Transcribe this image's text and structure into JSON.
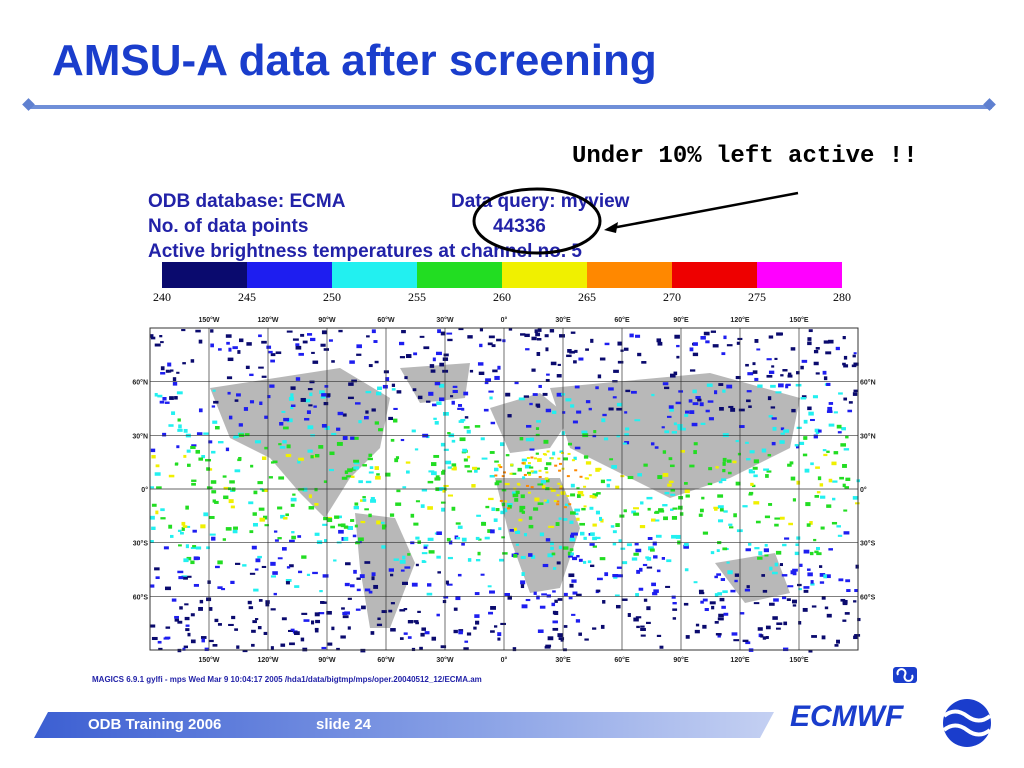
{
  "slide": {
    "title": "AMSU-A data after screening",
    "note": "Under 10% left active !!"
  },
  "figure": {
    "line1_left": "ODB database: ECMA",
    "line1_right": "Data query: myview",
    "line2_left": "No. of data points",
    "line2_right": "44336",
    "line3": "Active brightness temperatures at channel no. 5",
    "caption": "MAGICS 6.9.1 gylfi - mps Wed Mar  9 10:04:17 2005    /hda1/data/bigtmp/mps/oper.20040512_12/ECMA.am"
  },
  "color_scale": {
    "ticks": [
      "240",
      "245",
      "250",
      "255",
      "260",
      "265",
      "270",
      "275",
      "280"
    ],
    "colors": [
      "#0a0a6e",
      "#1e1ef0",
      "#22f0f0",
      "#22dd22",
      "#f0f000",
      "#ff8800",
      "#ee0000",
      "#ff00ff"
    ]
  },
  "map": {
    "lon_labels": [
      "150°W",
      "120°W",
      "90°W",
      "60°W",
      "30°W",
      "0°",
      "30°E",
      "60°E",
      "90°E",
      "120°E",
      "150°E"
    ],
    "lat_labels_left": [
      "60°N",
      "30°N",
      "0°",
      "30°S",
      "60°S"
    ],
    "lat_labels_right": [
      "60°N",
      "30°N",
      "0°",
      "30°S",
      "60°S"
    ],
    "land_color": "#b8b8b8"
  },
  "footer": {
    "course": "ODB Training 2006",
    "slide_label": "slide 24",
    "logo": "ECMWF"
  }
}
